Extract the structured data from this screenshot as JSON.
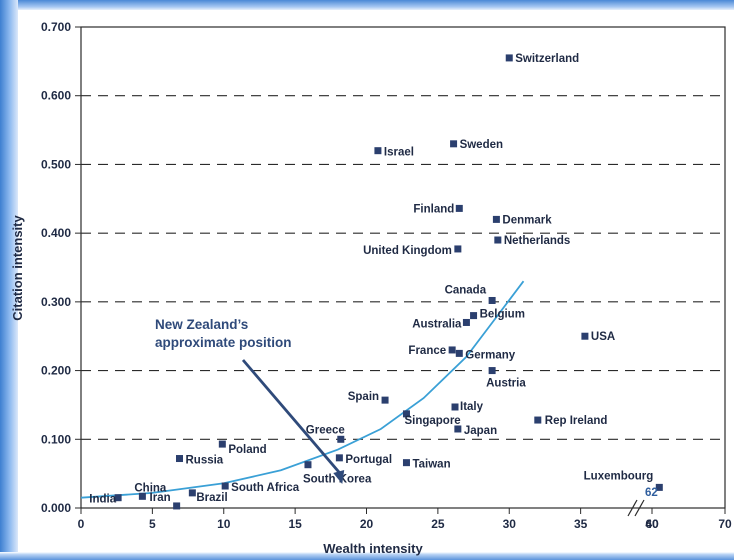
{
  "chart_data": {
    "type": "scatter",
    "xlabel": "Wealth intensity",
    "ylabel": "Citation intensity",
    "xlim": [
      0,
      70
    ],
    "ylim": [
      0,
      0.7
    ],
    "x_ticks": [
      "0",
      "5",
      "10",
      "15",
      "20",
      "25",
      "30",
      "35",
      "40",
      "60",
      "70"
    ],
    "y_ticks": [
      "0.000",
      "0.100",
      "0.200",
      "0.300",
      "0.400",
      "0.500",
      "0.600",
      "0.700"
    ],
    "gridlines": "dashed horizontal",
    "axis_break_x": true,
    "marker_color": "#2b3f6e",
    "curve_color": "#3aa0d6",
    "points": [
      {
        "name": "Switzerland",
        "x": 30.0,
        "y": 0.655
      },
      {
        "name": "Sweden",
        "x": 26.1,
        "y": 0.53
      },
      {
        "name": "Israel",
        "x": 20.8,
        "y": 0.52
      },
      {
        "name": "Finland",
        "x": 26.5,
        "y": 0.436
      },
      {
        "name": "Denmark",
        "x": 29.1,
        "y": 0.42
      },
      {
        "name": "Netherlands",
        "x": 29.2,
        "y": 0.39
      },
      {
        "name": "United Kingdom",
        "x": 26.4,
        "y": 0.377
      },
      {
        "name": "Canada",
        "x": 28.8,
        "y": 0.302
      },
      {
        "name": "Belgium",
        "x": 27.5,
        "y": 0.28
      },
      {
        "name": "Australia",
        "x": 27.0,
        "y": 0.27
      },
      {
        "name": "USA",
        "x": 35.3,
        "y": 0.25
      },
      {
        "name": "France",
        "x": 26.0,
        "y": 0.23
      },
      {
        "name": "Germany",
        "x": 26.5,
        "y": 0.225
      },
      {
        "name": "Austria",
        "x": 28.8,
        "y": 0.2
      },
      {
        "name": "Spain",
        "x": 21.3,
        "y": 0.157
      },
      {
        "name": "Italy",
        "x": 26.2,
        "y": 0.147
      },
      {
        "name": "Singapore",
        "x": 22.8,
        "y": 0.137
      },
      {
        "name": "Rep Ireland",
        "x": 32.0,
        "y": 0.128
      },
      {
        "name": "Japan",
        "x": 26.4,
        "y": 0.115
      },
      {
        "name": "Greece",
        "x": 18.2,
        "y": 0.1
      },
      {
        "name": "Poland",
        "x": 9.9,
        "y": 0.093
      },
      {
        "name": "Portugal",
        "x": 18.1,
        "y": 0.073
      },
      {
        "name": "Russia",
        "x": 6.9,
        "y": 0.072
      },
      {
        "name": "Taiwan",
        "x": 22.8,
        "y": 0.066
      },
      {
        "name": "South Korea",
        "x": 15.9,
        "y": 0.063
      },
      {
        "name": "South Africa",
        "x": 10.1,
        "y": 0.032
      },
      {
        "name": "Luxembourg",
        "x": 61.0,
        "y": 0.03
      },
      {
        "name": "Brazil",
        "x": 7.8,
        "y": 0.022
      },
      {
        "name": "China",
        "x": 4.3,
        "y": 0.017
      },
      {
        "name": "India",
        "x": 2.6,
        "y": 0.015
      },
      {
        "name": "Iran",
        "x": 6.7,
        "y": 0.003
      }
    ],
    "curve": [
      [
        0,
        0.015
      ],
      [
        5,
        0.022
      ],
      [
        10,
        0.036
      ],
      [
        14,
        0.055
      ],
      [
        18,
        0.085
      ],
      [
        21,
        0.115
      ],
      [
        24,
        0.16
      ],
      [
        27,
        0.22
      ],
      [
        29,
        0.275
      ],
      [
        31,
        0.33
      ]
    ],
    "annotations": [
      {
        "text_lines": [
          "New Zealand’s",
          "approximate position"
        ],
        "points_to": [
          18.3,
          0.035
        ]
      },
      {
        "text": "62"
      }
    ]
  }
}
